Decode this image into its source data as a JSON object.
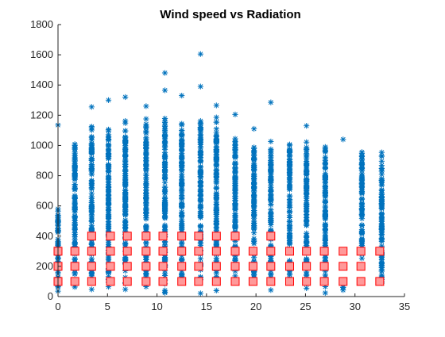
{
  "chart_data": {
    "type": "scatter",
    "title": "Wind speed vs Radiation",
    "xlabel": "",
    "ylabel": "",
    "xlim": [
      0,
      35
    ],
    "ylim": [
      0,
      1800
    ],
    "xticks": [
      "0",
      "5",
      "10",
      "15",
      "20",
      "25",
      "30",
      "35"
    ],
    "yticks": [
      "0",
      "200",
      "400",
      "600",
      "800",
      "1000",
      "1200",
      "1400",
      "1600",
      "1800"
    ],
    "grid": false,
    "legend": "none",
    "colors": {
      "scatter": "#0072BD",
      "markers_edge": "#FF0000",
      "markers_fill": "#FF9999"
    },
    "series": [
      {
        "marker": "asterisk",
        "columns": [
          {
            "x": 0,
            "min": 0,
            "max": 600,
            "outliers": [
              1135
            ]
          },
          {
            "x": 1.7,
            "min": 0,
            "max": 1060,
            "outliers": []
          },
          {
            "x": 3.4,
            "min": 0,
            "max": 1145,
            "outliers": [
              1255
            ]
          },
          {
            "x": 5.1,
            "min": 0,
            "max": 1180,
            "outliers": [
              1300
            ]
          },
          {
            "x": 6.8,
            "min": 0,
            "max": 1200,
            "outliers": [
              1320
            ]
          },
          {
            "x": 8.9,
            "min": 0,
            "max": 1220,
            "outliers": [
              1260
            ]
          },
          {
            "x": 10.8,
            "min": 0,
            "max": 1220,
            "outliers": [
              1365,
              1480
            ]
          },
          {
            "x": 12.5,
            "min": 0,
            "max": 1200,
            "outliers": [
              1330
            ]
          },
          {
            "x": 14.4,
            "min": 0,
            "max": 1210,
            "outliers": [
              1390,
              1605
            ]
          },
          {
            "x": 16,
            "min": 0,
            "max": 1200,
            "outliers": [
              1265
            ]
          },
          {
            "x": 17.9,
            "min": 0,
            "max": 1075,
            "outliers": [
              1205
            ]
          },
          {
            "x": 19.8,
            "min": 0,
            "max": 1050,
            "outliers": [
              1110
            ]
          },
          {
            "x": 21.5,
            "min": 0,
            "max": 1050,
            "outliers": [
              1285
            ]
          },
          {
            "x": 23.4,
            "min": 0,
            "max": 1040,
            "outliers": []
          },
          {
            "x": 25.1,
            "min": 0,
            "max": 1040,
            "outliers": [
              1130
            ]
          },
          {
            "x": 27,
            "min": 0,
            "max": 1040,
            "outliers": []
          },
          {
            "x": 28.8,
            "min": 0,
            "max": 300,
            "outliers": [
              1040
            ]
          },
          {
            "x": 30.7,
            "min": 200,
            "max": 1000,
            "outliers": []
          },
          {
            "x": 32.7,
            "min": 0,
            "max": 970,
            "outliers": []
          }
        ]
      },
      {
        "marker": "square",
        "points": [
          {
            "x": 0,
            "y": 100
          },
          {
            "x": 0,
            "y": 200
          },
          {
            "x": 0,
            "y": 300
          },
          {
            "x": 1.7,
            "y": 100
          },
          {
            "x": 1.7,
            "y": 200
          },
          {
            "x": 1.7,
            "y": 300
          },
          {
            "x": 3.4,
            "y": 100
          },
          {
            "x": 3.4,
            "y": 200
          },
          {
            "x": 3.4,
            "y": 300
          },
          {
            "x": 3.4,
            "y": 400
          },
          {
            "x": 5.3,
            "y": 100
          },
          {
            "x": 5.3,
            "y": 200
          },
          {
            "x": 5.3,
            "y": 300
          },
          {
            "x": 5.3,
            "y": 400
          },
          {
            "x": 7.0,
            "y": 100
          },
          {
            "x": 7.0,
            "y": 200
          },
          {
            "x": 7.0,
            "y": 300
          },
          {
            "x": 7.0,
            "y": 400
          },
          {
            "x": 8.9,
            "y": 100
          },
          {
            "x": 8.9,
            "y": 200
          },
          {
            "x": 8.9,
            "y": 300
          },
          {
            "x": 8.9,
            "y": 400
          },
          {
            "x": 10.6,
            "y": 100
          },
          {
            "x": 10.6,
            "y": 200
          },
          {
            "x": 10.6,
            "y": 300
          },
          {
            "x": 10.6,
            "y": 400
          },
          {
            "x": 12.5,
            "y": 100
          },
          {
            "x": 12.5,
            "y": 200
          },
          {
            "x": 12.5,
            "y": 300
          },
          {
            "x": 12.5,
            "y": 400
          },
          {
            "x": 14.2,
            "y": 100
          },
          {
            "x": 14.2,
            "y": 200
          },
          {
            "x": 14.2,
            "y": 300
          },
          {
            "x": 14.2,
            "y": 400
          },
          {
            "x": 16.0,
            "y": 100
          },
          {
            "x": 16.0,
            "y": 200
          },
          {
            "x": 16.0,
            "y": 300
          },
          {
            "x": 16.0,
            "y": 400
          },
          {
            "x": 17.9,
            "y": 100
          },
          {
            "x": 17.9,
            "y": 200
          },
          {
            "x": 17.9,
            "y": 300
          },
          {
            "x": 17.9,
            "y": 400
          },
          {
            "x": 19.7,
            "y": 100
          },
          {
            "x": 19.7,
            "y": 200
          },
          {
            "x": 19.7,
            "y": 300
          },
          {
            "x": 21.5,
            "y": 100
          },
          {
            "x": 21.5,
            "y": 200
          },
          {
            "x": 21.5,
            "y": 300
          },
          {
            "x": 21.5,
            "y": 400
          },
          {
            "x": 23.4,
            "y": 100
          },
          {
            "x": 23.4,
            "y": 200
          },
          {
            "x": 23.4,
            "y": 300
          },
          {
            "x": 25.1,
            "y": 100
          },
          {
            "x": 25.1,
            "y": 200
          },
          {
            "x": 25.1,
            "y": 300
          },
          {
            "x": 26.9,
            "y": 100
          },
          {
            "x": 26.9,
            "y": 200
          },
          {
            "x": 26.9,
            "y": 300
          },
          {
            "x": 28.8,
            "y": 100
          },
          {
            "x": 28.8,
            "y": 200
          },
          {
            "x": 28.8,
            "y": 300
          },
          {
            "x": 30.6,
            "y": 100
          },
          {
            "x": 30.6,
            "y": 200
          },
          {
            "x": 30.6,
            "y": 300
          },
          {
            "x": 32.5,
            "y": 100
          },
          {
            "x": 32.5,
            "y": 300
          }
        ]
      }
    ]
  }
}
